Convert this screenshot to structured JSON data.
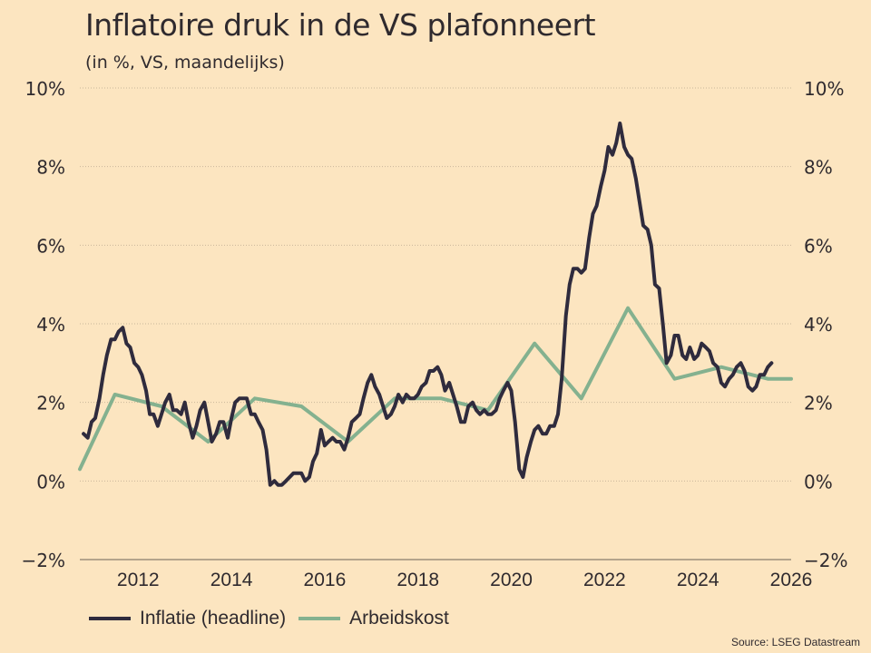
{
  "header": {
    "title": "Inflatoire druk in de VS plafonneert",
    "subtitle": "(in %, VS, maandelijks)"
  },
  "source": "Source: LSEG Datastream",
  "colors": {
    "background": "#fce5c0",
    "inflation": "#2f2b3d",
    "labor": "#84b18f",
    "text": "#2f2a2e",
    "grid": "#c9b79a"
  },
  "chart_data": {
    "type": "line",
    "title": "Inflatoire druk in de VS plafonneert",
    "subtitle": "(in %, VS, maandelijks)",
    "xlabel": "",
    "ylabel": "%",
    "xlim": [
      2010.75,
      2026
    ],
    "ylim": [
      -2,
      10
    ],
    "x_ticks": [
      2012,
      2014,
      2016,
      2018,
      2020,
      2022,
      2024,
      2026
    ],
    "x_tick_labels": [
      "2012",
      "2014",
      "2016",
      "2018",
      "2020",
      "2022",
      "2024",
      "2026"
    ],
    "y_ticks": [
      -2,
      0,
      2,
      4,
      6,
      8,
      10
    ],
    "y_tick_labels": [
      "−2%",
      "0%",
      "2%",
      "4%",
      "6%",
      "8%",
      "10%"
    ],
    "grid": "horizontal dotted",
    "legend_position": "bottom-left",
    "series": [
      {
        "name": "Inflatie (headline)",
        "color": "#2f2b3d",
        "points": [
          [
            2010.83,
            1.2
          ],
          [
            2010.92,
            1.1
          ],
          [
            2011.0,
            1.5
          ],
          [
            2011.08,
            1.6
          ],
          [
            2011.17,
            2.1
          ],
          [
            2011.25,
            2.7
          ],
          [
            2011.33,
            3.2
          ],
          [
            2011.42,
            3.6
          ],
          [
            2011.5,
            3.6
          ],
          [
            2011.58,
            3.8
          ],
          [
            2011.67,
            3.9
          ],
          [
            2011.75,
            3.5
          ],
          [
            2011.83,
            3.4
          ],
          [
            2011.92,
            3.0
          ],
          [
            2012.0,
            2.9
          ],
          [
            2012.08,
            2.7
          ],
          [
            2012.17,
            2.3
          ],
          [
            2012.25,
            1.7
          ],
          [
            2012.33,
            1.7
          ],
          [
            2012.42,
            1.4
          ],
          [
            2012.5,
            1.7
          ],
          [
            2012.58,
            2.0
          ],
          [
            2012.67,
            2.2
          ],
          [
            2012.75,
            1.8
          ],
          [
            2012.83,
            1.8
          ],
          [
            2012.92,
            1.7
          ],
          [
            2013.0,
            2.0
          ],
          [
            2013.08,
            1.5
          ],
          [
            2013.17,
            1.1
          ],
          [
            2013.25,
            1.4
          ],
          [
            2013.33,
            1.8
          ],
          [
            2013.42,
            2.0
          ],
          [
            2013.5,
            1.5
          ],
          [
            2013.58,
            1.0
          ],
          [
            2013.67,
            1.2
          ],
          [
            2013.75,
            1.5
          ],
          [
            2013.83,
            1.5
          ],
          [
            2013.92,
            1.1
          ],
          [
            2014.0,
            1.6
          ],
          [
            2014.08,
            2.0
          ],
          [
            2014.17,
            2.1
          ],
          [
            2014.25,
            2.1
          ],
          [
            2014.33,
            2.1
          ],
          [
            2014.42,
            1.7
          ],
          [
            2014.5,
            1.7
          ],
          [
            2014.58,
            1.5
          ],
          [
            2014.67,
            1.3
          ],
          [
            2014.75,
            0.8
          ],
          [
            2014.83,
            -0.1
          ],
          [
            2014.92,
            0.0
          ],
          [
            2015.0,
            -0.1
          ],
          [
            2015.08,
            -0.1
          ],
          [
            2015.17,
            0.0
          ],
          [
            2015.25,
            0.1
          ],
          [
            2015.33,
            0.2
          ],
          [
            2015.42,
            0.2
          ],
          [
            2015.5,
            0.2
          ],
          [
            2015.58,
            0.0
          ],
          [
            2015.67,
            0.1
          ],
          [
            2015.75,
            0.5
          ],
          [
            2015.83,
            0.7
          ],
          [
            2015.92,
            1.3
          ],
          [
            2016.0,
            0.9
          ],
          [
            2016.08,
            1.0
          ],
          [
            2016.17,
            1.1
          ],
          [
            2016.25,
            1.0
          ],
          [
            2016.33,
            1.0
          ],
          [
            2016.42,
            0.8
          ],
          [
            2016.5,
            1.1
          ],
          [
            2016.58,
            1.5
          ],
          [
            2016.67,
            1.6
          ],
          [
            2016.75,
            1.7
          ],
          [
            2016.83,
            2.1
          ],
          [
            2016.92,
            2.5
          ],
          [
            2017.0,
            2.7
          ],
          [
            2017.08,
            2.4
          ],
          [
            2017.17,
            2.2
          ],
          [
            2017.25,
            1.9
          ],
          [
            2017.33,
            1.6
          ],
          [
            2017.42,
            1.7
          ],
          [
            2017.5,
            1.9
          ],
          [
            2017.58,
            2.2
          ],
          [
            2017.67,
            2.0
          ],
          [
            2017.75,
            2.2
          ],
          [
            2017.83,
            2.1
          ],
          [
            2017.92,
            2.1
          ],
          [
            2018.0,
            2.2
          ],
          [
            2018.08,
            2.4
          ],
          [
            2018.17,
            2.5
          ],
          [
            2018.25,
            2.8
          ],
          [
            2018.33,
            2.8
          ],
          [
            2018.42,
            2.9
          ],
          [
            2018.5,
            2.7
          ],
          [
            2018.58,
            2.3
          ],
          [
            2018.67,
            2.5
          ],
          [
            2018.75,
            2.2
          ],
          [
            2018.83,
            1.9
          ],
          [
            2018.92,
            1.5
          ],
          [
            2019.0,
            1.5
          ],
          [
            2019.08,
            1.9
          ],
          [
            2019.17,
            2.0
          ],
          [
            2019.25,
            1.8
          ],
          [
            2019.33,
            1.7
          ],
          [
            2019.42,
            1.8
          ],
          [
            2019.5,
            1.7
          ],
          [
            2019.58,
            1.7
          ],
          [
            2019.67,
            1.8
          ],
          [
            2019.75,
            2.1
          ],
          [
            2019.83,
            2.3
          ],
          [
            2019.92,
            2.5
          ],
          [
            2020.0,
            2.3
          ],
          [
            2020.08,
            1.5
          ],
          [
            2020.17,
            0.3
          ],
          [
            2020.25,
            0.1
          ],
          [
            2020.33,
            0.6
          ],
          [
            2020.42,
            1.0
          ],
          [
            2020.5,
            1.3
          ],
          [
            2020.58,
            1.4
          ],
          [
            2020.67,
            1.2
          ],
          [
            2020.75,
            1.2
          ],
          [
            2020.83,
            1.4
          ],
          [
            2020.92,
            1.4
          ],
          [
            2021.0,
            1.7
          ],
          [
            2021.08,
            2.6
          ],
          [
            2021.17,
            4.2
          ],
          [
            2021.25,
            5.0
          ],
          [
            2021.33,
            5.4
          ],
          [
            2021.42,
            5.4
          ],
          [
            2021.5,
            5.3
          ],
          [
            2021.58,
            5.4
          ],
          [
            2021.67,
            6.2
          ],
          [
            2021.75,
            6.8
          ],
          [
            2021.83,
            7.0
          ],
          [
            2021.92,
            7.5
          ],
          [
            2022.0,
            7.9
          ],
          [
            2022.08,
            8.5
          ],
          [
            2022.17,
            8.3
          ],
          [
            2022.25,
            8.6
          ],
          [
            2022.33,
            9.1
          ],
          [
            2022.42,
            8.5
          ],
          [
            2022.5,
            8.3
          ],
          [
            2022.58,
            8.2
          ],
          [
            2022.67,
            7.7
          ],
          [
            2022.75,
            7.1
          ],
          [
            2022.83,
            6.5
          ],
          [
            2022.92,
            6.4
          ],
          [
            2023.0,
            6.0
          ],
          [
            2023.08,
            5.0
          ],
          [
            2023.17,
            4.9
          ],
          [
            2023.25,
            4.0
          ],
          [
            2023.33,
            3.0
          ],
          [
            2023.42,
            3.2
          ],
          [
            2023.5,
            3.7
          ],
          [
            2023.58,
            3.7
          ],
          [
            2023.67,
            3.2
          ],
          [
            2023.75,
            3.1
          ],
          [
            2023.83,
            3.4
          ],
          [
            2023.92,
            3.1
          ],
          [
            2024.0,
            3.2
          ],
          [
            2024.08,
            3.5
          ],
          [
            2024.17,
            3.4
          ],
          [
            2024.25,
            3.3
          ],
          [
            2024.33,
            3.0
          ],
          [
            2024.42,
            2.9
          ],
          [
            2024.5,
            2.5
          ],
          [
            2024.58,
            2.4
          ],
          [
            2024.67,
            2.6
          ],
          [
            2024.75,
            2.7
          ],
          [
            2024.83,
            2.9
          ],
          [
            2024.92,
            3.0
          ],
          [
            2025.0,
            2.8
          ],
          [
            2025.08,
            2.4
          ],
          [
            2025.17,
            2.3
          ],
          [
            2025.25,
            2.4
          ],
          [
            2025.33,
            2.7
          ],
          [
            2025.42,
            2.7
          ],
          [
            2025.5,
            2.9
          ],
          [
            2025.58,
            3.0
          ]
        ]
      },
      {
        "name": "Arbeidskost",
        "color": "#84b18f",
        "points": [
          [
            2010.75,
            0.3
          ],
          [
            2011.5,
            2.2
          ],
          [
            2012.5,
            1.9
          ],
          [
            2013.5,
            1.0
          ],
          [
            2014.5,
            2.1
          ],
          [
            2015.5,
            1.9
          ],
          [
            2016.5,
            1.0
          ],
          [
            2017.5,
            2.1
          ],
          [
            2018.5,
            2.1
          ],
          [
            2019.5,
            1.8
          ],
          [
            2020.5,
            3.5
          ],
          [
            2021.5,
            2.1
          ],
          [
            2022.5,
            4.4
          ],
          [
            2023.5,
            2.6
          ],
          [
            2024.5,
            2.9
          ],
          [
            2025.5,
            2.6
          ],
          [
            2026.0,
            2.6
          ]
        ]
      }
    ]
  },
  "legend": [
    {
      "label": "Inflatie (headline)",
      "color": "#2f2b3d"
    },
    {
      "label": "Arbeidskost",
      "color": "#84b18f"
    }
  ]
}
